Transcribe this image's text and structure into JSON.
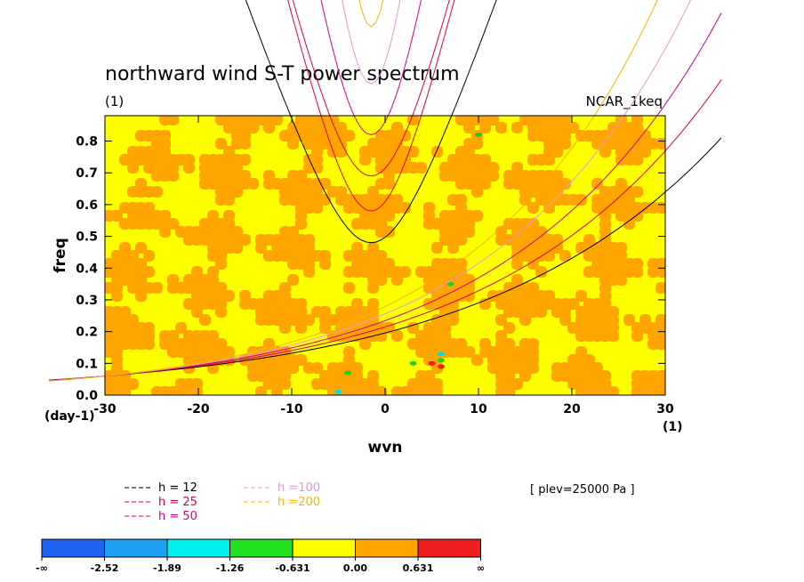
{
  "chart_data": {
    "type": "heatmap",
    "title": "northward wind S-T power spectrum",
    "subtitle": "(1)",
    "case_label": "NCAR_1keq",
    "xlabel": "wvn",
    "ylabel": "freq",
    "x_unit": "(1)",
    "y_unit": "(day-1)",
    "xlim": [
      -30,
      30
    ],
    "ylim": [
      0,
      0.88
    ],
    "xticks": [
      -30,
      -20,
      -10,
      0,
      10,
      20,
      30
    ],
    "xtick_labels": [
      "-30",
      "-20",
      "-10",
      "0",
      "10",
      "20",
      "30"
    ],
    "yticks": [
      0,
      0.1,
      0.2,
      0.3,
      0.4,
      0.5,
      0.6,
      0.7,
      0.8
    ],
    "ytick_labels": [
      "0.0",
      "0.1",
      "0.2",
      "0.3",
      "0.4",
      "0.5",
      "0.6",
      "0.7",
      "0.8"
    ],
    "annotation": "[ plev=25000 Pa ]",
    "dispersion_curves": [
      {
        "label": "h = 12",
        "h": 12,
        "color": "#000000",
        "minima_freq": [
          0.48
        ]
      },
      {
        "label": "h = 25",
        "h": 25,
        "color": "#e0003a",
        "minima_freq": [
          0.58,
          0.69
        ]
      },
      {
        "label": "h = 50",
        "h": 50,
        "color": "#d0008c",
        "minima_freq": [
          0.82
        ]
      },
      {
        "label": "h =100",
        "h": 100,
        "color": "#e09ad8",
        "minima_freq": [
          0.98
        ]
      },
      {
        "label": "h =200",
        "h": 200,
        "color": "#f0b800",
        "minima_freq": [
          1.16
        ]
      }
    ],
    "colorbar": {
      "labels": [
        "-∞",
        "-2.52",
        "-1.89",
        "-1.26",
        "-0.631",
        "0.00",
        "0.631",
        "∞"
      ],
      "colors": [
        "#1e64f0",
        "#1ea0f0",
        "#00f0f0",
        "#20e020",
        "#ffff00",
        "#ffa500",
        "#f01e1e"
      ]
    },
    "field_colors": {
      "low": "#ffff00",
      "high": "#ffa500"
    }
  }
}
